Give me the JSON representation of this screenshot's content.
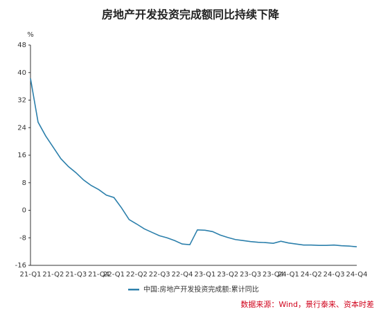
{
  "chart_data": {
    "type": "line",
    "title": "房地产开发投资完成额同比持续下降",
    "y_unit": "%",
    "categories": [
      "21-Q1",
      null,
      null,
      "21-Q2",
      null,
      null,
      "21-Q3",
      null,
      null,
      "21-Q4",
      null,
      "22-Q1",
      null,
      null,
      "22-Q2",
      null,
      null,
      "22-Q3",
      null,
      null,
      "22-Q4",
      null,
      null,
      "23-Q1",
      null,
      null,
      "23-Q2",
      null,
      null,
      "23-Q3",
      null,
      null,
      "23-Q4",
      null,
      "24-Q1",
      null,
      null,
      "24-Q2",
      null,
      null,
      "24-Q3",
      null,
      null,
      "24-Q4"
    ],
    "series": [
      {
        "name": "中国:房地产开发投资完成额:累计同比",
        "color": "#2b7fab",
        "values": [
          38.3,
          25.6,
          21.6,
          18.3,
          15.0,
          12.7,
          10.9,
          8.8,
          7.2,
          6.0,
          4.4,
          3.7,
          0.7,
          -2.7,
          -4.0,
          -5.4,
          -6.4,
          -7.4,
          -8.0,
          -8.8,
          -9.8,
          -10.0,
          -5.7,
          -5.8,
          -6.2,
          -7.2,
          -7.9,
          -8.5,
          -8.8,
          -9.1,
          -9.3,
          -9.4,
          -9.6,
          -9.0,
          -9.5,
          -9.8,
          -10.1,
          -10.1,
          -10.2,
          -10.2,
          -10.1,
          -10.3,
          -10.4,
          -10.6
        ]
      }
    ],
    "ylim": [
      -16,
      48
    ],
    "yticks": [
      -16,
      -8,
      0,
      8,
      16,
      24,
      32,
      40,
      48
    ],
    "source": "数据来源：Wind，景行泰来、资本时差"
  }
}
